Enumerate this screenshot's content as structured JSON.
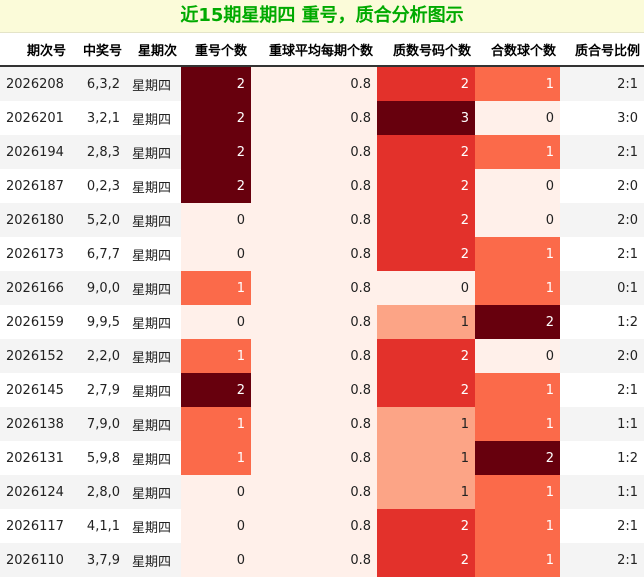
{
  "title": "近15期星期四 重号，质合分析图示",
  "headers": [
    "期次号",
    "中奖号",
    "星期次",
    "重号个数",
    "重球平均每期个数",
    "质数号码个数",
    "合数球个数",
    "质合号比例"
  ],
  "rows": [
    [
      "2026208",
      "6,3,2",
      "星期四",
      "2",
      "0.8",
      "2",
      "1",
      "2:1"
    ],
    [
      "2026201",
      "3,2,1",
      "星期四",
      "2",
      "0.8",
      "3",
      "0",
      "3:0"
    ],
    [
      "2026194",
      "2,8,3",
      "星期四",
      "2",
      "0.8",
      "2",
      "1",
      "2:1"
    ],
    [
      "2026187",
      "0,2,3",
      "星期四",
      "2",
      "0.8",
      "2",
      "0",
      "2:0"
    ],
    [
      "2026180",
      "5,2,0",
      "星期四",
      "0",
      "0.8",
      "2",
      "0",
      "2:0"
    ],
    [
      "2026173",
      "6,7,7",
      "星期四",
      "0",
      "0.8",
      "2",
      "1",
      "2:1"
    ],
    [
      "2026166",
      "9,0,0",
      "星期四",
      "1",
      "0.8",
      "0",
      "1",
      "0:1"
    ],
    [
      "2026159",
      "9,9,5",
      "星期四",
      "0",
      "0.8",
      "1",
      "2",
      "1:2"
    ],
    [
      "2026152",
      "2,2,0",
      "星期四",
      "1",
      "0.8",
      "2",
      "0",
      "2:0"
    ],
    [
      "2026145",
      "2,7,9",
      "星期四",
      "2",
      "0.8",
      "2",
      "1",
      "2:1"
    ],
    [
      "2026138",
      "7,9,0",
      "星期四",
      "1",
      "0.8",
      "1",
      "1",
      "1:1"
    ],
    [
      "2026131",
      "5,9,8",
      "星期四",
      "1",
      "0.8",
      "1",
      "2",
      "1:2"
    ],
    [
      "2026124",
      "2,8,0",
      "星期四",
      "0",
      "0.8",
      "1",
      "1",
      "1:1"
    ],
    [
      "2026117",
      "4,1,1",
      "星期四",
      "0",
      "0.8",
      "2",
      "1",
      "2:1"
    ],
    [
      "2026110",
      "3,7,9",
      "星期四",
      "0",
      "0.8",
      "2",
      "1",
      "2:1"
    ]
  ],
  "colors": {
    "title_text": "#00aa00",
    "title_bg": "#fbfbd9",
    "heat_0": "#fff0ea",
    "heat_1_light": "#fca486",
    "heat_mid": "#fb6a4a",
    "heat_strong": "#e3312b",
    "heat_max": "#67000d"
  }
}
